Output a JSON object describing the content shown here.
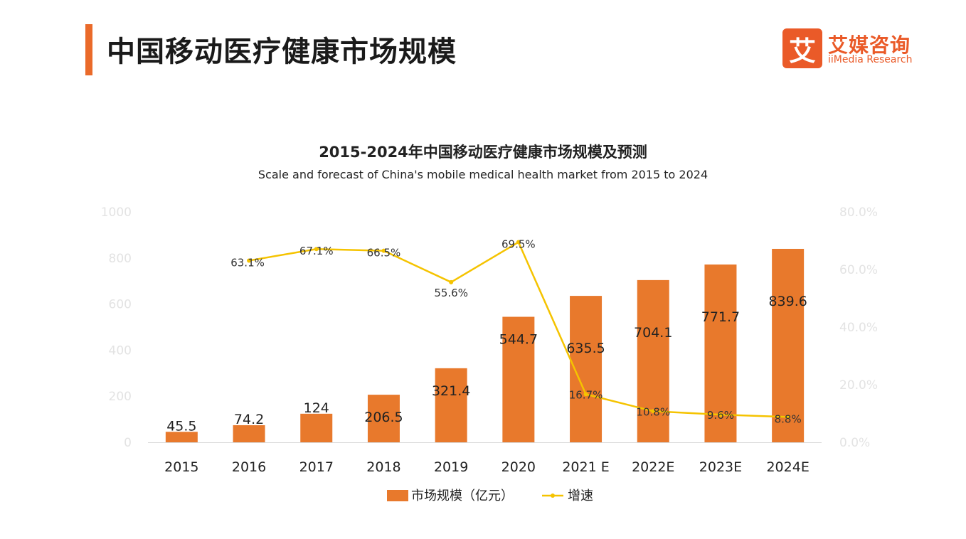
{
  "header": {
    "title": "中国移动医疗健康市场规模"
  },
  "logo": {
    "mark": "艾",
    "name_cn": "艾媒咨询",
    "name_en": "iiMedia Research"
  },
  "colors": {
    "accent": "#ea6a2a",
    "bar": "#e8792c",
    "line": "#f5c300"
  },
  "chart_data": {
    "type": "bar",
    "title": "2015-2024年中国移动医疗健康市场规模及预测",
    "subtitle": "Scale and forecast of China's mobile medical health market from 2015 to 2024",
    "categories": [
      "2015",
      "2016",
      "2017",
      "2018",
      "2019",
      "2020",
      "2021 E",
      "2022E",
      "2023E",
      "2024E"
    ],
    "series": [
      {
        "name": "市场规模（亿元）",
        "type": "bar",
        "axis": "left",
        "values": [
          45.5,
          74.2,
          124,
          206.5,
          321.4,
          544.7,
          635.5,
          704.1,
          771.7,
          839.6
        ],
        "labels": [
          "45.5",
          "74.2",
          "124",
          "206.5",
          "321.4",
          "544.7",
          "635.5",
          "704.1",
          "771.7",
          "839.6"
        ]
      },
      {
        "name": "增速",
        "type": "line",
        "axis": "right",
        "values": [
          null,
          63.1,
          67.1,
          66.5,
          55.6,
          69.5,
          16.7,
          10.8,
          9.6,
          8.8
        ],
        "labels": [
          "",
          "63.1%",
          "67.1%",
          "66.5%",
          "55.6%",
          "69.5%",
          "16.7%",
          "10.8%",
          "9.6%",
          "8.8%"
        ]
      }
    ],
    "y_left": {
      "min": 0,
      "max": 1000,
      "ticks": [
        "0",
        "200",
        "400",
        "600",
        "800",
        "1000"
      ]
    },
    "y_right": {
      "min": 0,
      "max": 80,
      "ticks": [
        "0.0%",
        "20.0%",
        "40.0%",
        "60.0%",
        "80.0%"
      ]
    },
    "legend": [
      "市场规模（亿元）",
      "增速"
    ],
    "legend_position": "bottom",
    "grid": false
  }
}
